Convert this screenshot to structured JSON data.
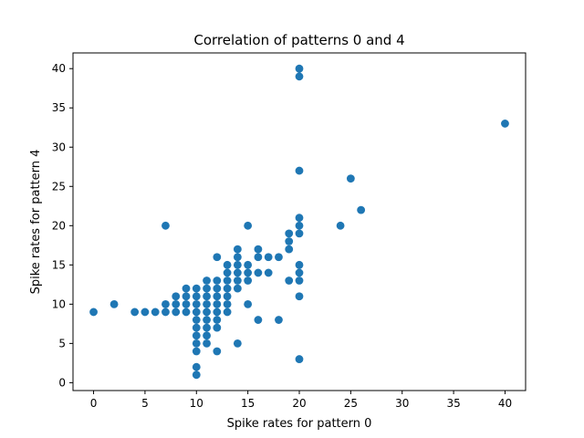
{
  "chart_data": {
    "type": "scatter",
    "title": "Correlation of patterns 0 and 4",
    "xlabel": "Spike rates for pattern 0",
    "ylabel": "Spike rates for pattern 4",
    "xlim": [
      -2,
      42
    ],
    "ylim": [
      -1,
      42
    ],
    "x_ticks": [
      0,
      5,
      10,
      15,
      20,
      25,
      30,
      35,
      40
    ],
    "y_ticks": [
      0,
      5,
      10,
      15,
      20,
      25,
      30,
      35,
      40
    ],
    "grid": false,
    "color": "#1f77b4",
    "points": [
      [
        0,
        9
      ],
      [
        2,
        10
      ],
      [
        4,
        9
      ],
      [
        5,
        9
      ],
      [
        6,
        9
      ],
      [
        7,
        9
      ],
      [
        7,
        10
      ],
      [
        7,
        20
      ],
      [
        8,
        9
      ],
      [
        8,
        10
      ],
      [
        8,
        11
      ],
      [
        9,
        9
      ],
      [
        9,
        10
      ],
      [
        9,
        11
      ],
      [
        9,
        12
      ],
      [
        10,
        1
      ],
      [
        10,
        2
      ],
      [
        10,
        4
      ],
      [
        10,
        5
      ],
      [
        10,
        6
      ],
      [
        10,
        7
      ],
      [
        10,
        8
      ],
      [
        10,
        9
      ],
      [
        10,
        10
      ],
      [
        10,
        11
      ],
      [
        10,
        12
      ],
      [
        11,
        5
      ],
      [
        11,
        6
      ],
      [
        11,
        7
      ],
      [
        11,
        8
      ],
      [
        11,
        9
      ],
      [
        11,
        10
      ],
      [
        11,
        11
      ],
      [
        11,
        12
      ],
      [
        11,
        13
      ],
      [
        12,
        4
      ],
      [
        12,
        7
      ],
      [
        12,
        8
      ],
      [
        12,
        9
      ],
      [
        12,
        10
      ],
      [
        12,
        11
      ],
      [
        12,
        12
      ],
      [
        12,
        13
      ],
      [
        12,
        16
      ],
      [
        13,
        9
      ],
      [
        13,
        10
      ],
      [
        13,
        11
      ],
      [
        13,
        12
      ],
      [
        13,
        13
      ],
      [
        13,
        14
      ],
      [
        13,
        15
      ],
      [
        14,
        5
      ],
      [
        14,
        12
      ],
      [
        14,
        13
      ],
      [
        14,
        14
      ],
      [
        14,
        15
      ],
      [
        14,
        16
      ],
      [
        14,
        17
      ],
      [
        15,
        10
      ],
      [
        15,
        13
      ],
      [
        15,
        14
      ],
      [
        15,
        15
      ],
      [
        15,
        20
      ],
      [
        16,
        8
      ],
      [
        16,
        14
      ],
      [
        16,
        16
      ],
      [
        16,
        17
      ],
      [
        17,
        14
      ],
      [
        17,
        16
      ],
      [
        18,
        8
      ],
      [
        18,
        16
      ],
      [
        19,
        13
      ],
      [
        19,
        17
      ],
      [
        19,
        18
      ],
      [
        19,
        19
      ],
      [
        20,
        3
      ],
      [
        20,
        11
      ],
      [
        20,
        13
      ],
      [
        20,
        14
      ],
      [
        20,
        15
      ],
      [
        20,
        19
      ],
      [
        20,
        20
      ],
      [
        20,
        21
      ],
      [
        20,
        27
      ],
      [
        20,
        39
      ],
      [
        20,
        40
      ],
      [
        24,
        20
      ],
      [
        25,
        26
      ],
      [
        26,
        22
      ],
      [
        40,
        33
      ]
    ]
  }
}
